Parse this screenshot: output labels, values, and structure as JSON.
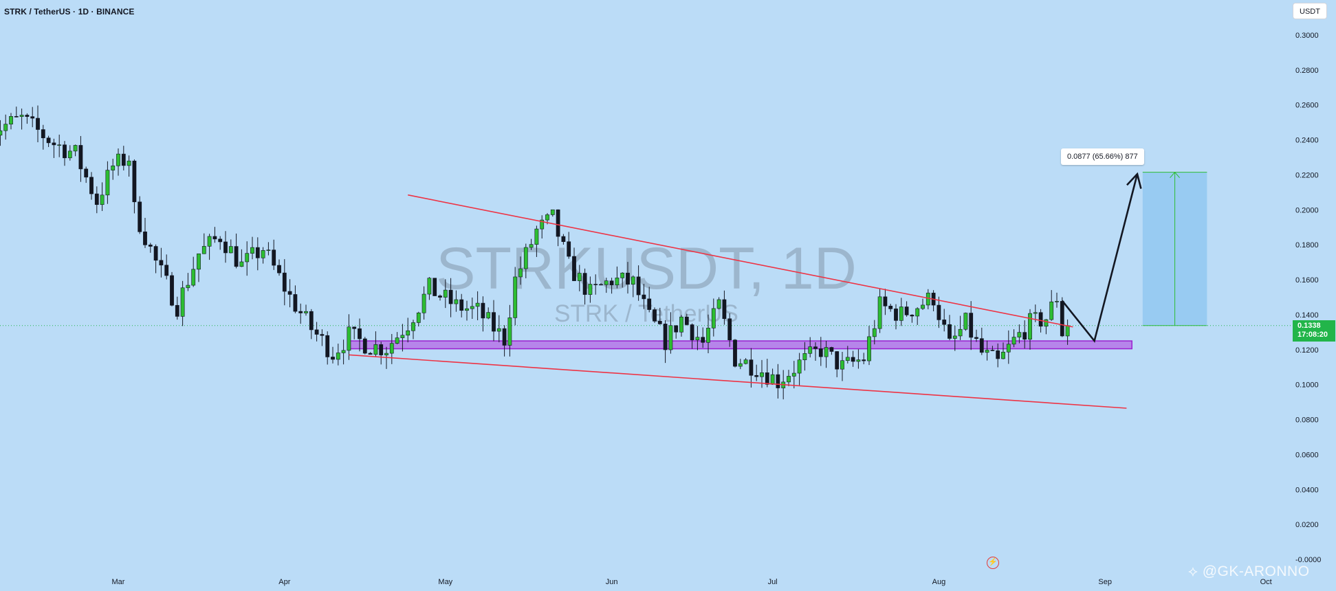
{
  "header": {
    "symbol_title": "STRK / TetherUS · 1D · BINANCE",
    "currency_button": "USDT"
  },
  "watermark_symbol": "STRKUSDT, 1D",
  "watermark_description": "STRK / TetherUS",
  "price_badge": {
    "price": "0.1338",
    "countdown": "17:08:20",
    "color": "#22b54a"
  },
  "measurement": {
    "label": "0.0877 (65.66%) 877",
    "from": 0.1338,
    "to": 0.2215
  },
  "author_watermark": "@GK-ARONNO",
  "icons": {
    "flash": "flash-icon",
    "author": "diamond-logo-icon"
  },
  "colors": {
    "background": "#bbdcf7",
    "up": "#2dbd32",
    "down": "#131722",
    "trendline": "#ee3344",
    "zone": "#b33ee0",
    "target_box": "#8cc6f0",
    "arrow": "#131722"
  },
  "chart_data": {
    "type": "candlestick",
    "symbol": "STRK / TetherUS",
    "interval": "1D",
    "exchange": "BINANCE",
    "ylim": [
      0.0,
      0.3
    ],
    "y_ticks": [
      "0.3000",
      "0.2800",
      "0.2600",
      "0.2400",
      "0.2200",
      "0.2000",
      "0.1800",
      "0.1600",
      "0.1400",
      "0.1200",
      "0.1000",
      "0.0800",
      "0.0600",
      "0.0400",
      "0.0200",
      "-0.0000"
    ],
    "x_ticks": [
      {
        "label": "Mar",
        "date": "2024-03-01"
      },
      {
        "label": "Apr",
        "date": "2024-04-01"
      },
      {
        "label": "May",
        "date": "2024-05-01"
      },
      {
        "label": "Jun",
        "date": "2024-06-01"
      },
      {
        "label": "Jul",
        "date": "2024-07-01"
      },
      {
        "label": "Aug",
        "date": "2024-08-01"
      },
      {
        "label": "Sep",
        "date": "2024-09-01"
      },
      {
        "label": "Oct",
        "date": "2024-10-01"
      }
    ],
    "last_price": 0.1338,
    "close_path": [
      [
        "2024-02-06",
        0.245
      ],
      [
        "2024-02-12",
        0.252
      ],
      [
        "2024-02-18",
        0.238
      ],
      [
        "2024-02-22",
        0.232
      ],
      [
        "2024-02-26",
        0.205
      ],
      [
        "2024-02-29",
        0.225
      ],
      [
        "2024-03-03",
        0.23
      ],
      [
        "2024-03-04",
        0.2
      ],
      [
        "2024-03-08",
        0.17
      ],
      [
        "2024-03-12",
        0.145
      ],
      [
        "2024-03-16",
        0.175
      ],
      [
        "2024-03-20",
        0.185
      ],
      [
        "2024-03-24",
        0.168
      ],
      [
        "2024-03-28",
        0.178
      ],
      [
        "2024-04-02",
        0.15
      ],
      [
        "2024-04-06",
        0.132
      ],
      [
        "2024-04-10",
        0.118
      ],
      [
        "2024-04-13",
        0.128
      ],
      [
        "2024-04-17",
        0.122
      ],
      [
        "2024-04-20",
        0.121
      ],
      [
        "2024-04-24",
        0.135
      ],
      [
        "2024-04-28",
        0.155
      ],
      [
        "2024-05-03",
        0.145
      ],
      [
        "2024-05-07",
        0.142
      ],
      [
        "2024-05-12",
        0.126
      ],
      [
        "2024-05-14",
        0.16
      ],
      [
        "2024-05-18",
        0.188
      ],
      [
        "2024-05-21",
        0.195
      ],
      [
        "2024-05-24",
        0.168
      ],
      [
        "2024-05-28",
        0.152
      ],
      [
        "2024-06-01",
        0.16
      ],
      [
        "2024-06-05",
        0.158
      ],
      [
        "2024-06-08",
        0.138
      ],
      [
        "2024-06-11",
        0.125
      ],
      [
        "2024-06-14",
        0.138
      ],
      [
        "2024-06-18",
        0.124
      ],
      [
        "2024-06-21",
        0.145
      ],
      [
        "2024-06-24",
        0.115
      ],
      [
        "2024-06-28",
        0.11
      ],
      [
        "2024-07-02",
        0.102
      ],
      [
        "2024-07-06",
        0.112
      ],
      [
        "2024-07-10",
        0.12
      ],
      [
        "2024-07-14",
        0.11
      ],
      [
        "2024-07-18",
        0.115
      ],
      [
        "2024-07-21",
        0.145
      ],
      [
        "2024-07-25",
        0.14
      ],
      [
        "2024-07-28",
        0.145
      ],
      [
        "2024-07-31",
        0.15
      ],
      [
        "2024-08-03",
        0.122
      ],
      [
        "2024-08-06",
        0.135
      ],
      [
        "2024-08-09",
        0.118
      ],
      [
        "2024-08-12",
        0.112
      ],
      [
        "2024-08-15",
        0.125
      ],
      [
        "2024-08-18",
        0.135
      ],
      [
        "2024-08-21",
        0.138
      ],
      [
        "2024-08-23",
        0.15
      ],
      [
        "2024-08-24",
        0.13
      ],
      [
        "2024-08-25",
        0.1338
      ]
    ],
    "annotations": {
      "upper_trendline": [
        [
          "2024-04-24",
          0.2085
        ],
        [
          "2024-08-26",
          0.133
        ]
      ],
      "lower_trendline": [
        [
          "2024-04-13",
          0.117
        ],
        [
          "2024-09-05",
          0.0865
        ]
      ],
      "support_zone": {
        "from": "2024-04-13",
        "to": "2024-09-06",
        "low": 0.1205,
        "high": 0.125
      },
      "projection_arrow": [
        [
          "2024-08-24",
          0.148
        ],
        [
          "2024-08-30",
          0.125
        ],
        [
          "2024-09-07",
          0.2205
        ]
      ],
      "target_box": {
        "from": "2024-09-08",
        "to": "2024-09-20",
        "low": 0.1338,
        "high": 0.2215
      }
    }
  }
}
